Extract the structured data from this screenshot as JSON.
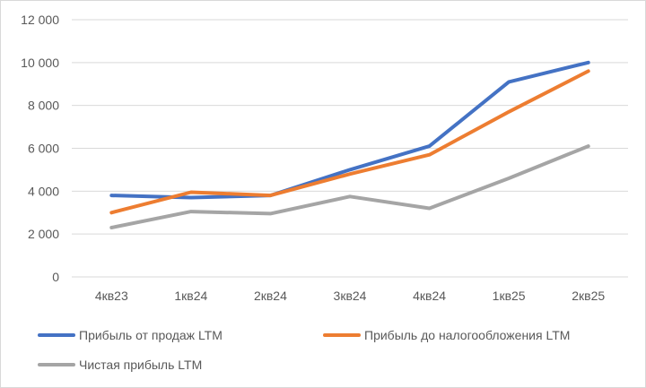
{
  "chart_data": {
    "type": "line",
    "title": "",
    "xlabel": "",
    "ylabel": "",
    "categories": [
      "4кв23",
      "1кв24",
      "2кв24",
      "3кв24",
      "4кв24",
      "1кв25",
      "2кв25"
    ],
    "ylim": [
      0,
      12000
    ],
    "yticks": [
      0,
      2000,
      4000,
      6000,
      8000,
      10000,
      12000
    ],
    "ytick_labels": [
      "0",
      "2 000",
      "4 000",
      "6 000",
      "8 000",
      "10 000",
      "12 000"
    ],
    "grid": true,
    "legend_position": "bottom",
    "series": [
      {
        "name": "Прибыль от продаж LTM",
        "color": "#4472C4",
        "values": [
          3800,
          3700,
          3800,
          5000,
          6100,
          9100,
          10000
        ]
      },
      {
        "name": "Прибыль до налогообложения LTM",
        "color": "#ED7D31",
        "values": [
          3000,
          3950,
          3800,
          4800,
          5700,
          7700,
          9600
        ]
      },
      {
        "name": "Чистая прибыль LTM",
        "color": "#A5A5A5",
        "values": [
          2300,
          3050,
          2950,
          3750,
          3200,
          4600,
          6100
        ]
      }
    ]
  }
}
